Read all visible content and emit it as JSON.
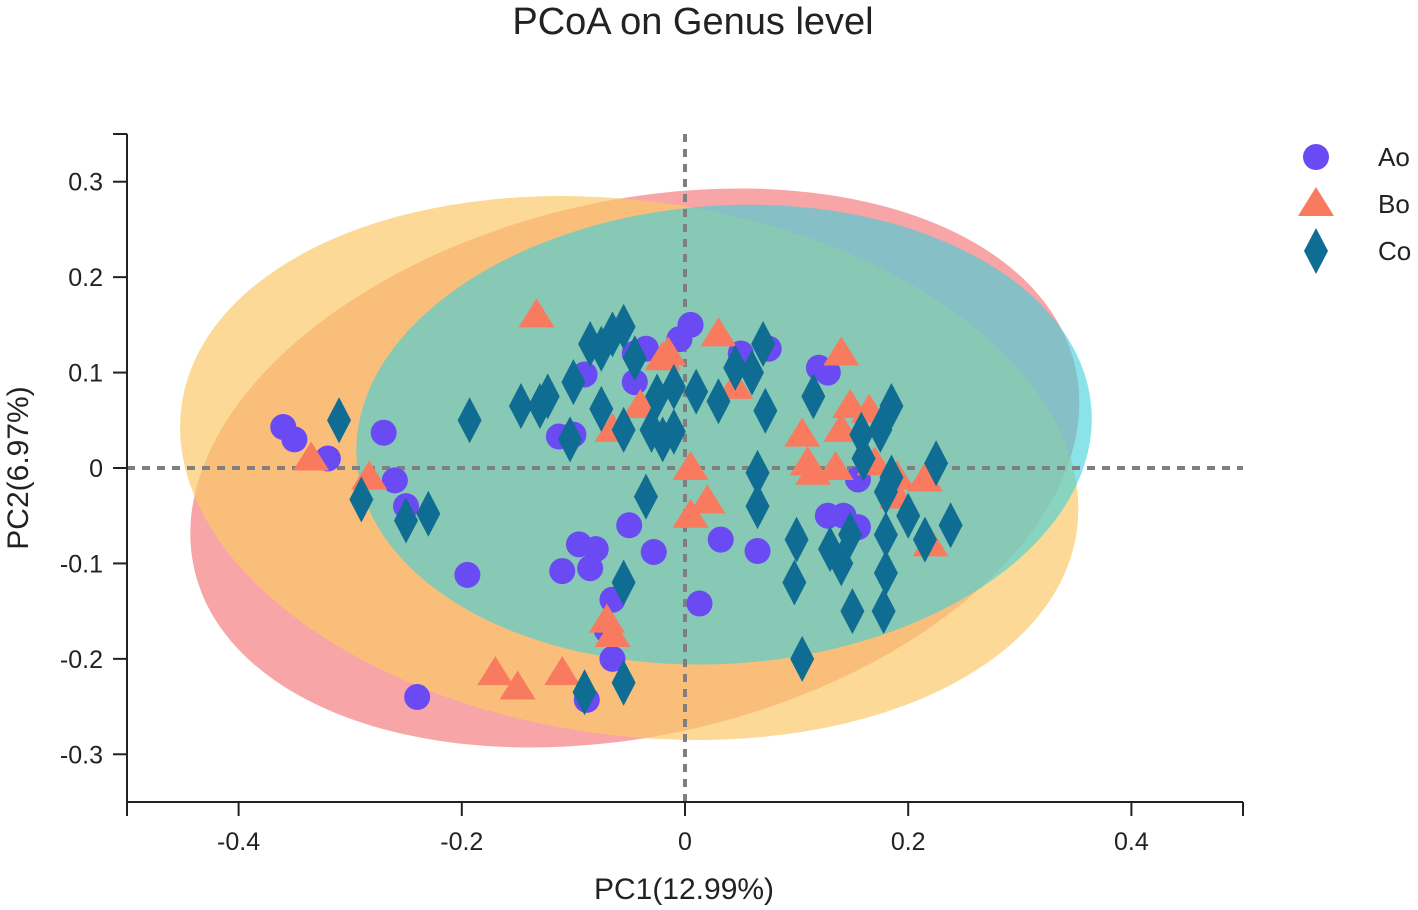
{
  "chart_data": {
    "type": "scatter",
    "title": "PCoA on Genus level",
    "xlabel": "PC1(12.99%)",
    "ylabel": "PC2(6.97%)",
    "xlim": [
      -0.5,
      0.5
    ],
    "ylim": [
      -0.35,
      0.35
    ],
    "xticks": [
      -0.4,
      -0.2,
      0,
      0.2,
      0.4
    ],
    "xtick_labels": [
      "-0.4",
      "-0.2",
      "0",
      "0.2",
      "0.4"
    ],
    "yticks": [
      0.3,
      0.2,
      0.1,
      0,
      -0.1,
      -0.2,
      -0.3
    ],
    "ytick_labels": [
      "0.3",
      "0.2",
      "0.1",
      "0",
      "-0.1",
      "-0.2",
      "-0.3"
    ],
    "reference_lines": {
      "x": 0,
      "y": 0
    },
    "legend_position": "right",
    "ellipses": [
      {
        "group": "Bo",
        "center": [
          -0.045,
          0.0
        ],
        "semi_axes": [
          0.405,
          0.28
        ],
        "angle_deg": -13,
        "color": "#f47f80",
        "opacity": 0.7
      },
      {
        "group": "Ao",
        "center": [
          -0.05,
          0.0
        ],
        "semi_axes": [
          0.405,
          0.28
        ],
        "angle_deg": 8,
        "color": "#fbc96a",
        "opacity": 0.7
      },
      {
        "group": "Co",
        "center": [
          0.035,
          0.035
        ],
        "semi_axes": [
          0.33,
          0.24
        ],
        "angle_deg": -4,
        "color": "#3ad1da",
        "opacity": 0.6
      }
    ],
    "series": [
      {
        "name": "Ao",
        "marker": "circle",
        "color": "#6a4af2",
        "points": [
          [
            -0.36,
            0.043
          ],
          [
            -0.35,
            0.03
          ],
          [
            -0.32,
            0.01
          ],
          [
            -0.27,
            0.037
          ],
          [
            -0.26,
            -0.013
          ],
          [
            -0.25,
            -0.04
          ],
          [
            -0.195,
            -0.112
          ],
          [
            -0.113,
            0.033
          ],
          [
            -0.1,
            0.035
          ],
          [
            -0.11,
            -0.108
          ],
          [
            -0.085,
            -0.105
          ],
          [
            -0.095,
            -0.08
          ],
          [
            -0.08,
            -0.085
          ],
          [
            -0.065,
            -0.138
          ],
          [
            -0.07,
            -0.17
          ],
          [
            -0.065,
            -0.2
          ],
          [
            -0.088,
            -0.243
          ],
          [
            -0.24,
            -0.24
          ],
          [
            -0.05,
            -0.06
          ],
          [
            -0.028,
            -0.088
          ],
          [
            0.013,
            -0.142
          ],
          [
            0.032,
            -0.075
          ],
          [
            0.065,
            -0.087
          ],
          [
            -0.035,
            0.125
          ],
          [
            -0.045,
            0.12
          ],
          [
            0.005,
            0.15
          ],
          [
            -0.005,
            0.135
          ],
          [
            -0.09,
            0.098
          ],
          [
            -0.045,
            0.09
          ],
          [
            0.12,
            0.105
          ],
          [
            0.128,
            0.1
          ],
          [
            0.075,
            0.125
          ],
          [
            0.05,
            0.12
          ],
          [
            0.155,
            -0.012
          ],
          [
            0.128,
            -0.05
          ],
          [
            0.142,
            -0.05
          ],
          [
            0.155,
            -0.062
          ]
        ]
      },
      {
        "name": "Bo",
        "marker": "triangle",
        "color": "#f97b5f",
        "points": [
          [
            -0.133,
            0.16
          ],
          [
            -0.335,
            0.01
          ],
          [
            -0.283,
            -0.01
          ],
          [
            -0.17,
            -0.215
          ],
          [
            -0.15,
            -0.23
          ],
          [
            -0.11,
            -0.215
          ],
          [
            -0.07,
            -0.16
          ],
          [
            -0.065,
            -0.175
          ],
          [
            -0.065,
            0.04
          ],
          [
            -0.04,
            0.065
          ],
          [
            -0.02,
            0.115
          ],
          [
            -0.015,
            0.12
          ],
          [
            0.005,
            0.0
          ],
          [
            0.02,
            -0.035
          ],
          [
            0.005,
            -0.05
          ],
          [
            0.03,
            0.14
          ],
          [
            0.045,
            0.085
          ],
          [
            0.105,
            0.035
          ],
          [
            0.11,
            0.005
          ],
          [
            0.115,
            -0.005
          ],
          [
            0.14,
            0.12
          ],
          [
            0.148,
            0.065
          ],
          [
            0.165,
            0.06
          ],
          [
            0.14,
            0.04
          ],
          [
            0.135,
            0.0
          ],
          [
            0.17,
            0.005
          ],
          [
            0.19,
            -0.01
          ],
          [
            0.215,
            -0.012
          ],
          [
            0.22,
            -0.08
          ],
          [
            0.19,
            -0.03
          ]
        ]
      },
      {
        "name": "Co",
        "marker": "diamond",
        "color": "#0f6c92",
        "points": [
          [
            -0.31,
            0.05
          ],
          [
            -0.29,
            -0.033
          ],
          [
            -0.25,
            -0.055
          ],
          [
            -0.23,
            -0.048
          ],
          [
            -0.193,
            0.05
          ],
          [
            -0.147,
            0.065
          ],
          [
            -0.123,
            0.075
          ],
          [
            -0.13,
            0.065
          ],
          [
            -0.103,
            0.03
          ],
          [
            -0.1,
            0.09
          ],
          [
            -0.085,
            0.13
          ],
          [
            -0.075,
            0.125
          ],
          [
            -0.065,
            0.14
          ],
          [
            -0.055,
            0.148
          ],
          [
            -0.045,
            0.115
          ],
          [
            -0.075,
            0.062
          ],
          [
            -0.055,
            0.04
          ],
          [
            -0.03,
            0.04
          ],
          [
            -0.02,
            0.03
          ],
          [
            -0.01,
            0.038
          ],
          [
            -0.025,
            0.075
          ],
          [
            -0.01,
            0.085
          ],
          [
            0.01,
            0.08
          ],
          [
            0.03,
            0.07
          ],
          [
            0.045,
            0.105
          ],
          [
            0.06,
            0.1
          ],
          [
            0.07,
            0.13
          ],
          [
            0.072,
            0.06
          ],
          [
            0.065,
            -0.005
          ],
          [
            0.065,
            -0.04
          ],
          [
            0.115,
            0.075
          ],
          [
            0.1,
            -0.075
          ],
          [
            0.098,
            -0.12
          ],
          [
            0.13,
            -0.085
          ],
          [
            0.14,
            -0.1
          ],
          [
            0.148,
            -0.07
          ],
          [
            0.15,
            -0.15
          ],
          [
            0.158,
            0.035
          ],
          [
            0.16,
            0.01
          ],
          [
            0.175,
            0.04
          ],
          [
            0.185,
            0.065
          ],
          [
            0.18,
            -0.025
          ],
          [
            0.185,
            -0.01
          ],
          [
            0.18,
            -0.07
          ],
          [
            0.18,
            -0.11
          ],
          [
            0.178,
            -0.15
          ],
          [
            0.2,
            -0.05
          ],
          [
            0.215,
            -0.075
          ],
          [
            0.225,
            0.005
          ],
          [
            0.238,
            -0.06
          ],
          [
            0.105,
            -0.2
          ],
          [
            -0.055,
            -0.12
          ],
          [
            -0.055,
            -0.225
          ],
          [
            -0.09,
            -0.235
          ],
          [
            -0.035,
            -0.03
          ]
        ]
      }
    ]
  }
}
